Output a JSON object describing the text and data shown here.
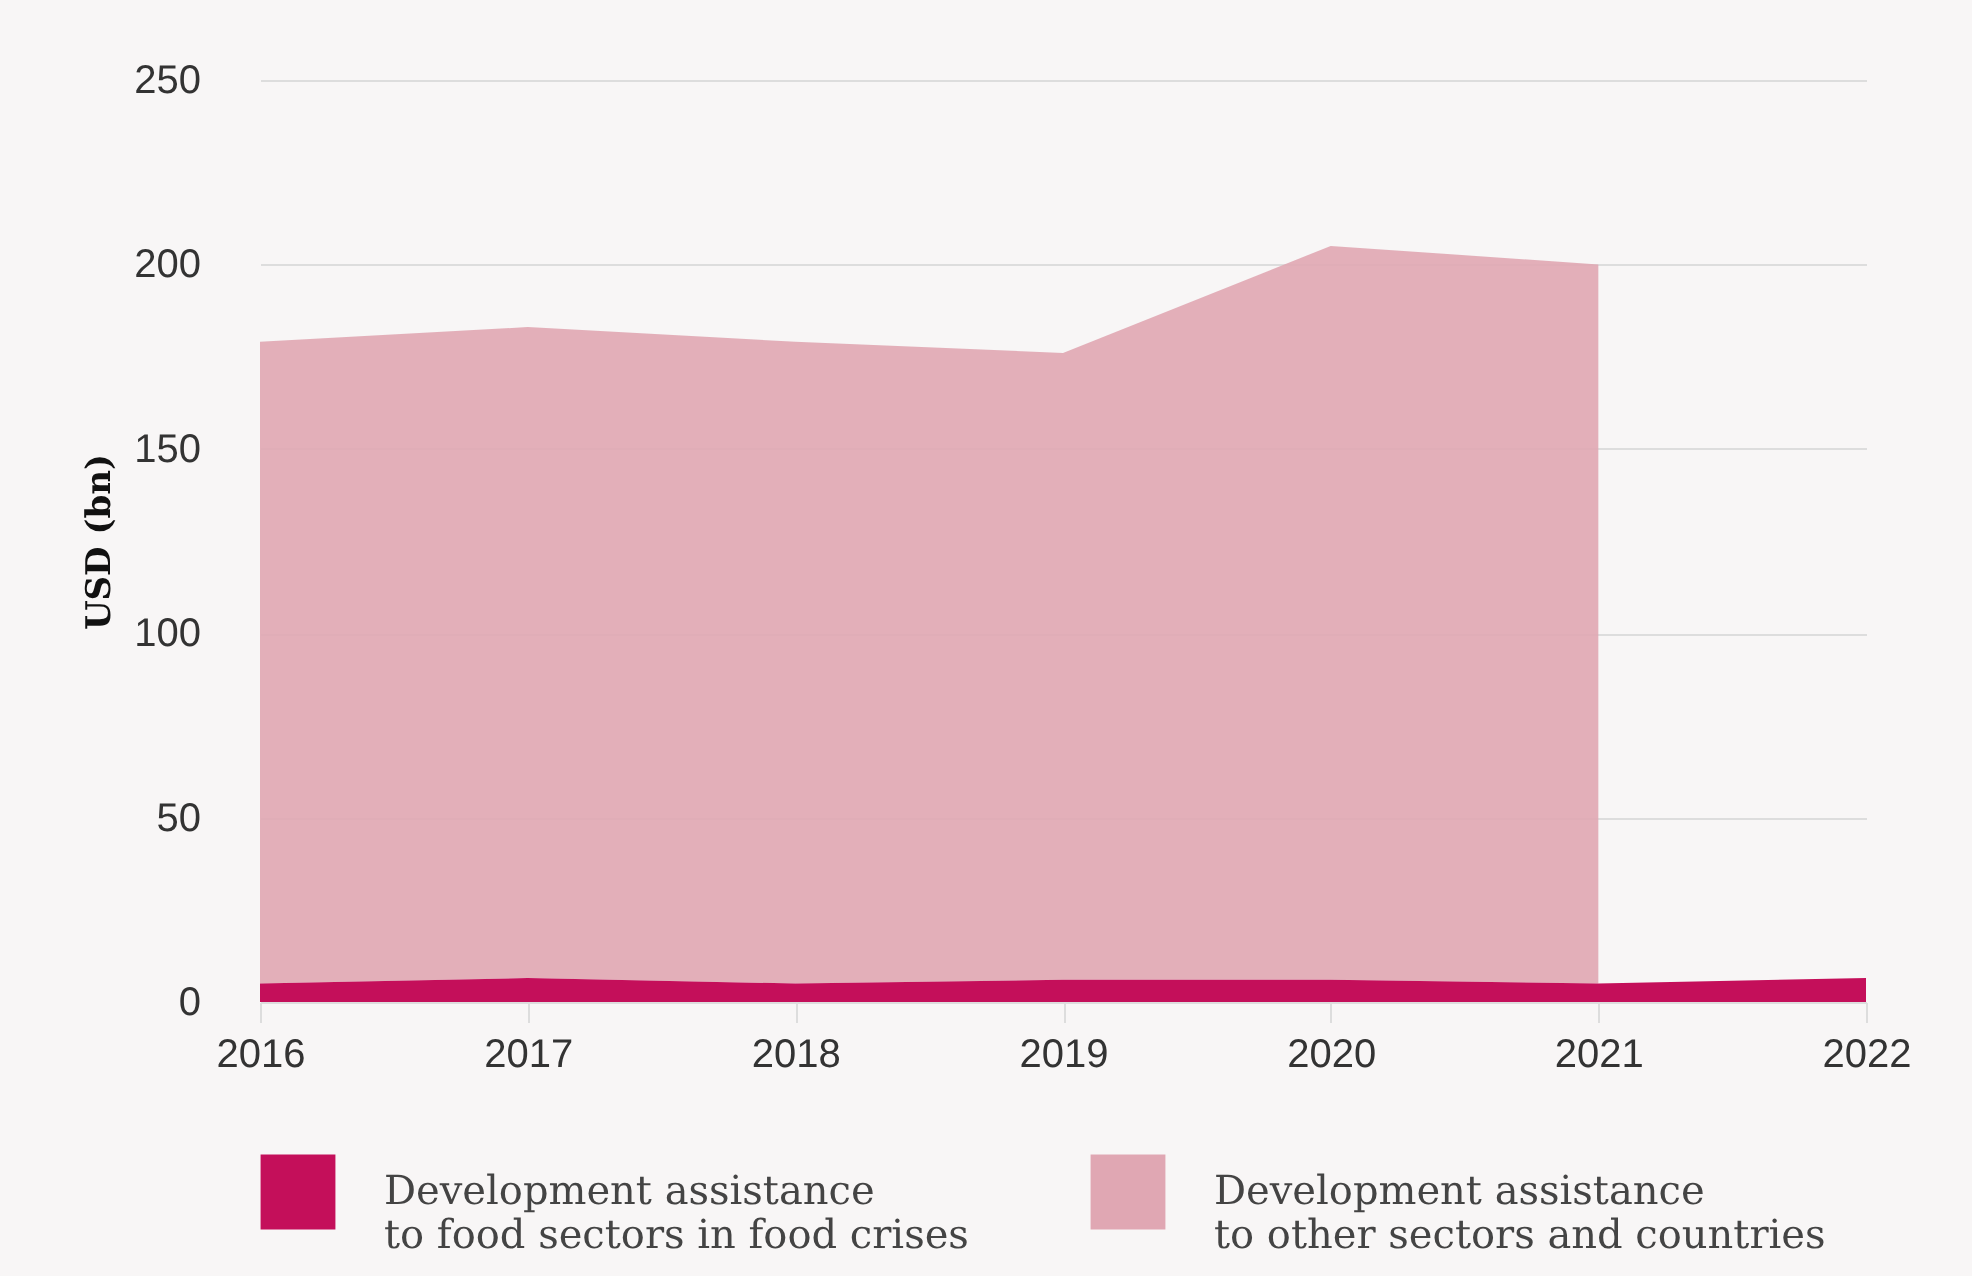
{
  "chart_data": {
    "type": "area",
    "stacked": true,
    "ylabel": "USD (bn)",
    "x": [
      2016,
      2017,
      2018,
      2019,
      2020,
      2021,
      2022
    ],
    "series": [
      {
        "name": "Development assistance\nto food sectors in food crises",
        "color": "#c40f5a",
        "values": [
          5,
          6.5,
          5,
          6,
          6,
          5,
          6.5
        ]
      },
      {
        "name": "Development assistance\nto other sectors and countries",
        "color": "#e0a7b3",
        "values": [
          174,
          176.5,
          174,
          170,
          199,
          195,
          null
        ]
      }
    ],
    "xlim": [
      2016,
      2022
    ],
    "xticks": [
      2016,
      2017,
      2018,
      2019,
      2020,
      2021,
      2022
    ],
    "ylim": [
      0,
      250
    ],
    "yticks": [
      0,
      50,
      100,
      150,
      200,
      250
    ],
    "grid": "y",
    "legend": "bottom"
  }
}
